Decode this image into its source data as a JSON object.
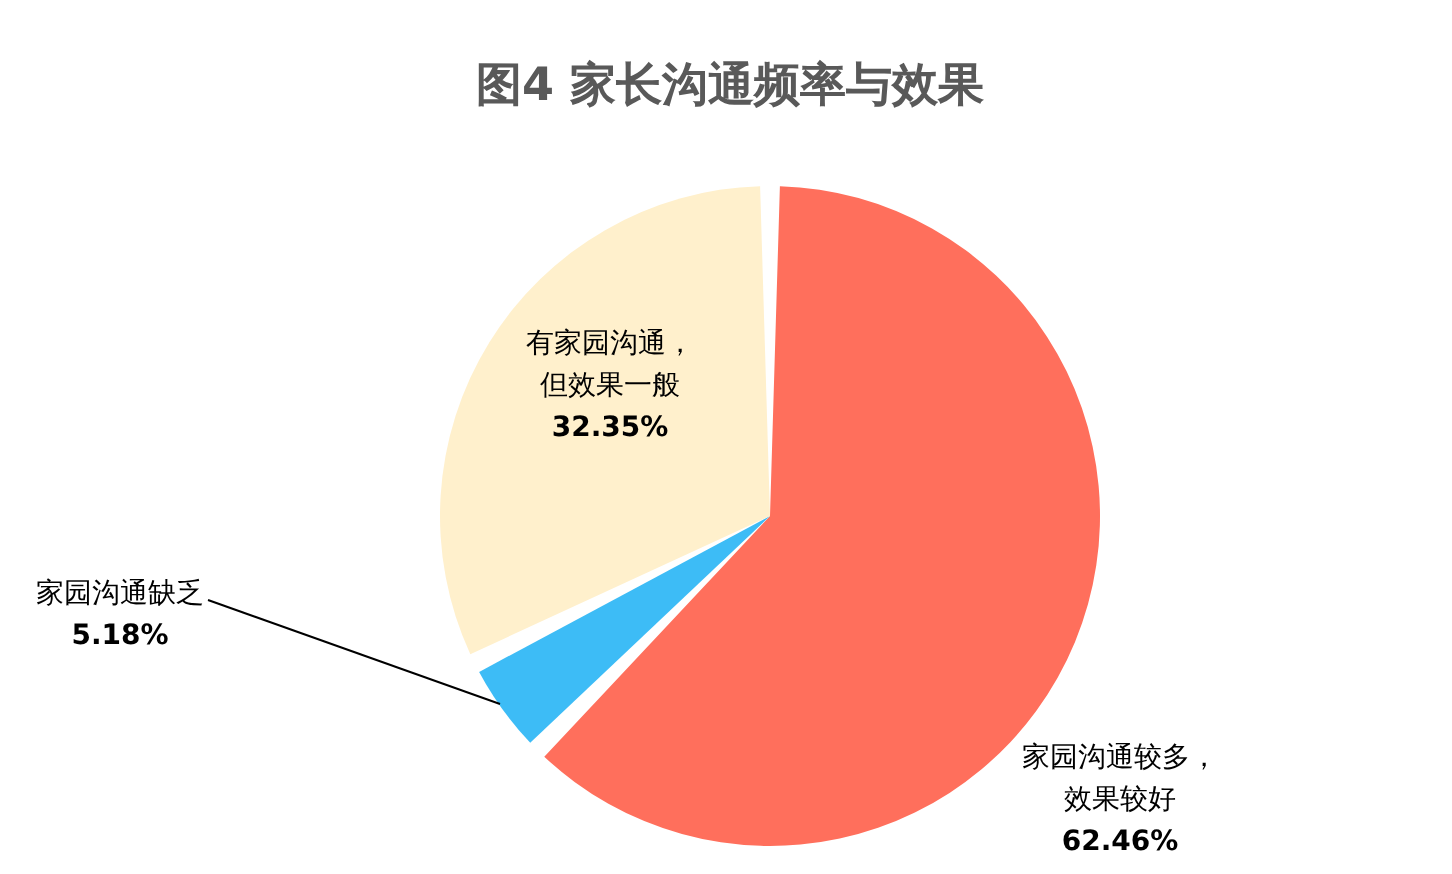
{
  "chart_data": {
    "type": "pie",
    "title": "图4 家长沟通频率与效果",
    "categories": [
      "家园沟通较多，效果较好",
      "家园沟通缺乏",
      "有家园沟通，但效果一般"
    ],
    "values": [
      62.46,
      5.18,
      32.35
    ],
    "colors": [
      "#ff6f5c",
      "#3dbcf6",
      "#fff0cc"
    ],
    "value_labels": [
      "62.46%",
      "5.18%",
      "32.35%"
    ]
  }
}
